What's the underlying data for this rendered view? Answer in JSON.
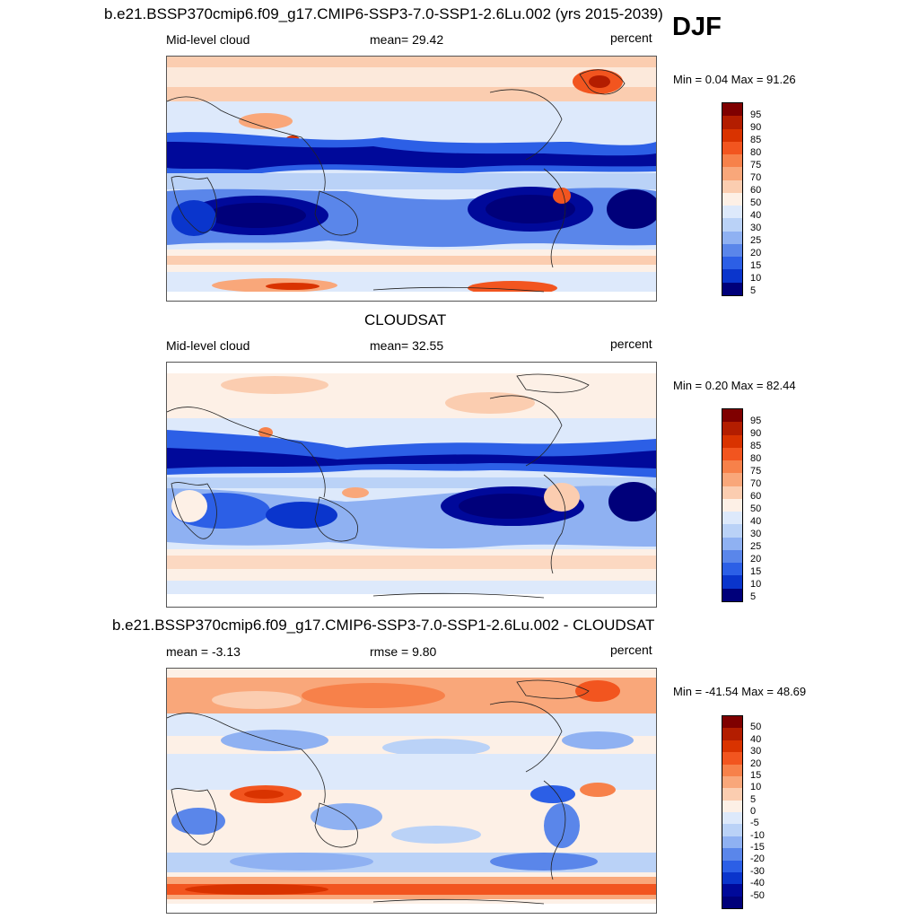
{
  "season": "DJF",
  "panels": [
    {
      "title": "b.e21.BSSP370cmip6.f09_g17.CMIP6-SSP3-7.0-SSP1-2.6Lu.002 (yrs 2015-2039)",
      "left": "Mid-level cloud",
      "center": "mean=  29.42",
      "right": "percent",
      "minmax": "Min =   0.04 Max =  91.26",
      "legend": [
        "95",
        "90",
        "85",
        "80",
        "75",
        "70",
        "60",
        "50",
        "40",
        "30",
        "25",
        "20",
        "15",
        "10",
        "5"
      ],
      "type": "abs"
    },
    {
      "title": "CLOUDSAT",
      "left": "Mid-level cloud",
      "center": "mean=  32.55",
      "right": "percent",
      "minmax": "Min =   0.20 Max =  82.44",
      "legend": [
        "95",
        "90",
        "85",
        "80",
        "75",
        "70",
        "60",
        "50",
        "40",
        "30",
        "25",
        "20",
        "15",
        "10",
        "5"
      ],
      "type": "abs"
    },
    {
      "title": "b.e21.BSSP370cmip6.f09_g17.CMIP6-SSP3-7.0-SSP1-2.6Lu.002 - CLOUDSAT",
      "left": "mean =  -3.13",
      "center": "rmse =   9.80",
      "right": "percent",
      "minmax": "Min = -41.54 Max =  48.69",
      "legend": [
        "50",
        "40",
        "30",
        "20",
        "15",
        "10",
        "5",
        "0",
        "-5",
        "-10",
        "-15",
        "-20",
        "-30",
        "-40",
        "-50"
      ],
      "type": "diff"
    }
  ],
  "colors": {
    "scale": [
      "#7f0000",
      "#b31d00",
      "#d93300",
      "#f2551f",
      "#f7814a",
      "#f9a77a",
      "#fbcdb0",
      "#fdf0e6",
      "#dde9fb",
      "#bad2f7",
      "#8fb1f2",
      "#5a86ea",
      "#2c5fe6",
      "#0a35cc",
      "#00099a",
      "#00007a"
    ]
  }
}
